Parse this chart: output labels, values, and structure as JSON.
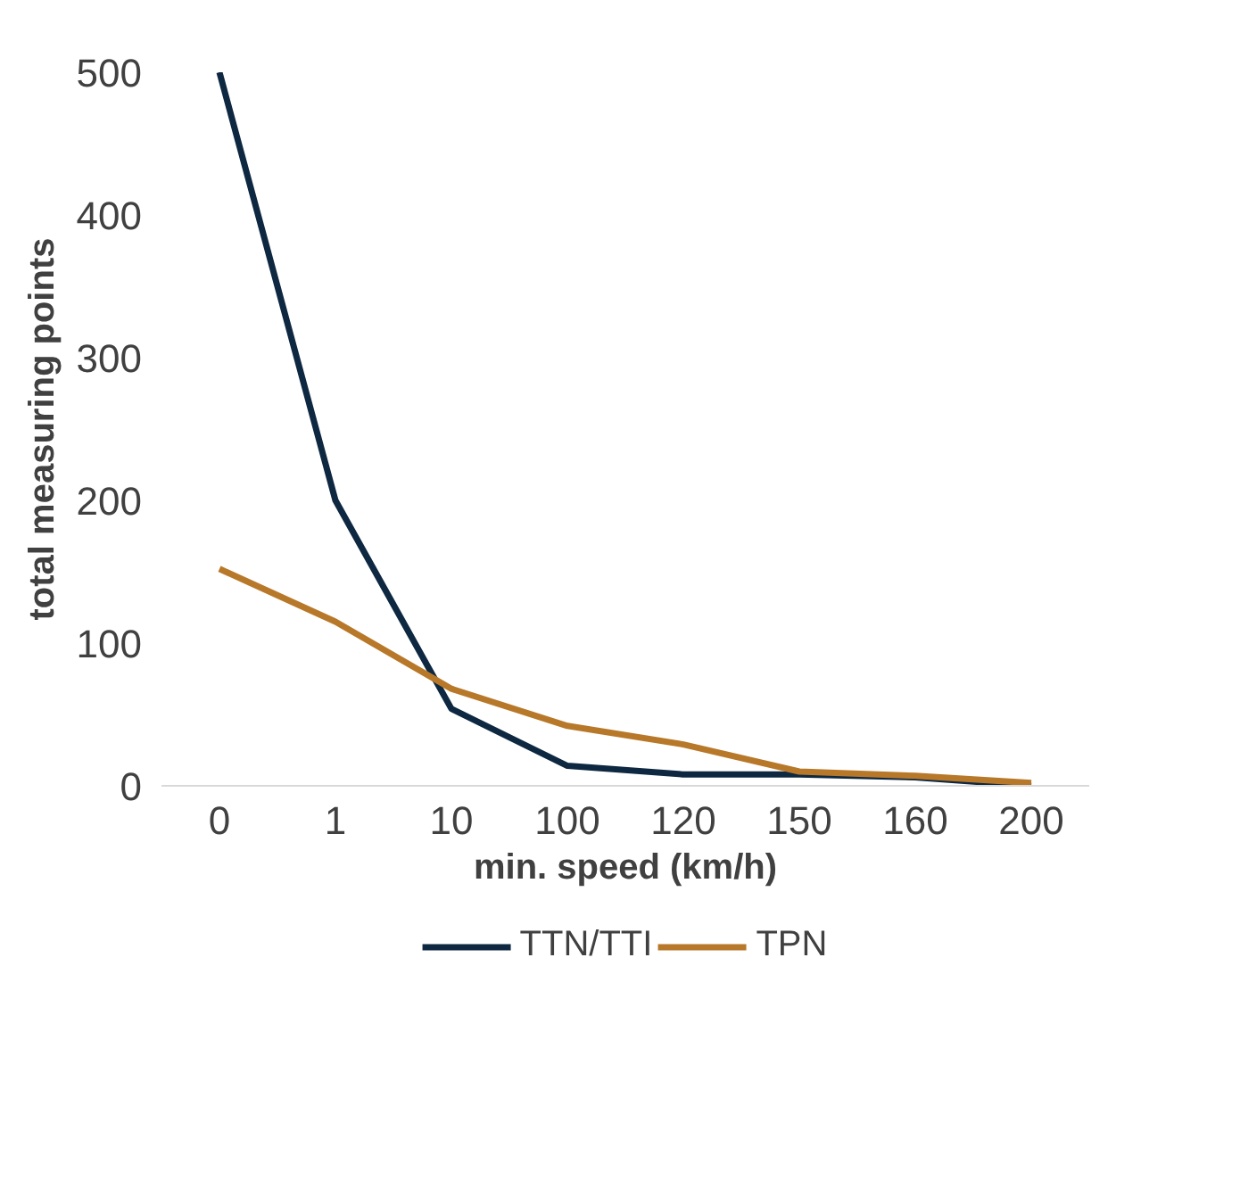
{
  "chart_data": {
    "type": "line",
    "xlabel": "min. speed (km/h)",
    "ylabel": "total measuring points",
    "categories": [
      "0",
      "1",
      "10",
      "100",
      "120",
      "150",
      "160",
      "200"
    ],
    "series": [
      {
        "name": "TTN/TTI",
        "color": "#0e2841",
        "values": [
          500,
          200,
          54,
          14,
          8,
          8,
          6,
          0
        ]
      },
      {
        "name": "TPN",
        "color": "#b8782a",
        "values": [
          152,
          115,
          68,
          42,
          29,
          10,
          7,
          2
        ]
      }
    ],
    "ylim": [
      0,
      500
    ],
    "yticks": [
      0,
      100,
      200,
      300,
      400,
      500
    ],
    "grid": false,
    "legend": "bottom",
    "marker": "none",
    "line_style": "solid"
  }
}
